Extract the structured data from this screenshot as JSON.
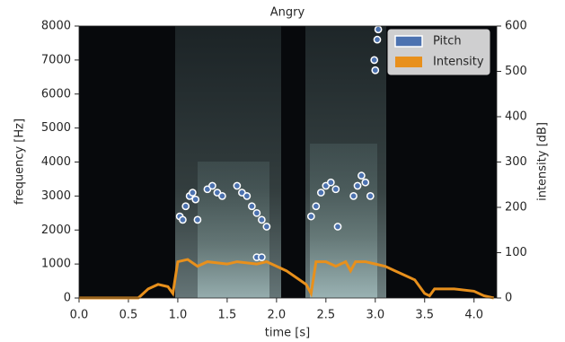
{
  "chart_data": {
    "type": "spectrogram",
    "title": "Angry",
    "x_label": "time [s]",
    "y_label": "frequency [Hz]",
    "y2_label": "intensity [dB]",
    "xlim": [
      0,
      4.23
    ],
    "xticks": [
      {
        "value": 0,
        "label": "0.0"
      },
      {
        "value": 0.5,
        "label": "0.5"
      },
      {
        "value": 1,
        "label": "1.0"
      },
      {
        "value": 1.5,
        "label": "1.5"
      },
      {
        "value": 2,
        "label": "2.0"
      },
      {
        "value": 2.5,
        "label": "2.5"
      },
      {
        "value": 3,
        "label": "3.0"
      },
      {
        "value": 3.5,
        "label": "3.5"
      },
      {
        "value": 4,
        "label": "4.0"
      }
    ],
    "ylim": [
      0,
      8000
    ],
    "yticks": [
      0,
      1000,
      2000,
      3000,
      4000,
      5000,
      6000,
      7000,
      8000
    ],
    "y2lim": [
      0,
      600
    ],
    "y2ticks": [
      0,
      100,
      200,
      300,
      400,
      500,
      600
    ],
    "legend": "upper right",
    "series": [
      {
        "name": "Pitch",
        "type": "scatter",
        "color": "#4c72b0",
        "x": [
          1.02,
          1.05,
          1.08,
          1.12,
          1.15,
          1.18,
          1.2,
          1.3,
          1.35,
          1.4,
          1.45,
          1.6,
          1.65,
          1.7,
          1.75,
          1.8,
          1.85,
          1.9,
          1.8,
          1.85,
          2.35,
          2.4,
          2.45,
          2.5,
          2.55,
          2.6,
          2.62,
          2.78,
          2.82,
          2.86,
          2.9,
          2.95,
          3.0,
          2.99,
          3.02,
          3.03
        ],
        "values": [
          2400,
          2300,
          2700,
          3000,
          3100,
          2900,
          2300,
          3200,
          3300,
          3100,
          3000,
          3300,
          3100,
          3000,
          2700,
          2500,
          2300,
          2100,
          1200,
          1200,
          2400,
          2700,
          3100,
          3300,
          3400,
          3200,
          2100,
          3000,
          3300,
          3600,
          3400,
          3000,
          6700,
          7000,
          7600,
          7900
        ]
      },
      {
        "name": "Intensity",
        "type": "line",
        "color": "#e8901c",
        "axis": "y2",
        "x": [
          0,
          0.6,
          0.7,
          0.8,
          0.9,
          0.95,
          1.0,
          1.1,
          1.2,
          1.3,
          1.5,
          1.6,
          1.8,
          1.9,
          2.0,
          2.1,
          2.2,
          2.3,
          2.35,
          2.4,
          2.5,
          2.6,
          2.7,
          2.75,
          2.8,
          2.9,
          3.0,
          3.1,
          3.2,
          3.3,
          3.4,
          3.5,
          3.55,
          3.6,
          3.8,
          4.0,
          4.1,
          4.2
        ],
        "values": [
          0,
          0,
          20,
          30,
          25,
          10,
          80,
          85,
          70,
          80,
          75,
          80,
          75,
          80,
          70,
          60,
          45,
          30,
          10,
          80,
          80,
          70,
          80,
          60,
          80,
          80,
          75,
          70,
          60,
          50,
          40,
          10,
          5,
          20,
          20,
          15,
          5,
          0
        ]
      }
    ]
  }
}
